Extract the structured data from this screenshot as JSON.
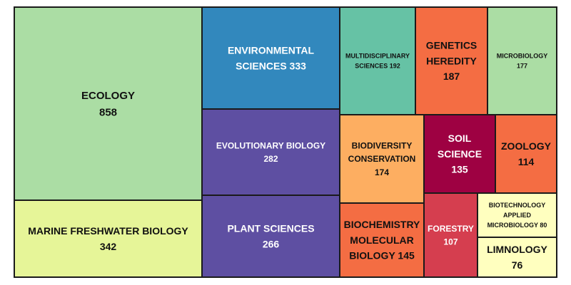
{
  "chart_data": {
    "type": "treemap",
    "title": "",
    "items": [
      {
        "name": "ECOLOGY",
        "value": 858,
        "color": "#abdda4"
      },
      {
        "name": "MARINE FRESHWATER BIOLOGY",
        "value": 342,
        "color": "#e6f598"
      },
      {
        "name": "ENVIRONMENTAL SCIENCES",
        "value": 333,
        "color": "#3288bd"
      },
      {
        "name": "EVOLUTIONARY BIOLOGY",
        "value": 282,
        "color": "#5e4fa2"
      },
      {
        "name": "PLANT SCIENCES",
        "value": 266,
        "color": "#5e4fa2"
      },
      {
        "name": "MULTIDISCIPLINARY SCIENCES",
        "value": 192,
        "color": "#66c2a5"
      },
      {
        "name": "GENETICS HEREDITY",
        "value": 187,
        "color": "#f46d43"
      },
      {
        "name": "MICROBIOLOGY",
        "value": 177,
        "color": "#abdda4"
      },
      {
        "name": "BIODIVERSITY CONSERVATION",
        "value": 174,
        "color": "#fdae61"
      },
      {
        "name": "SOIL SCIENCE",
        "value": 135,
        "color": "#9e0142"
      },
      {
        "name": "ZOOLOGY",
        "value": 114,
        "color": "#f46d43"
      },
      {
        "name": "BIOCHEMISTRY MOLECULAR BIOLOGY",
        "value": 145,
        "color": "#f46d43"
      },
      {
        "name": "FORESTRY",
        "value": 107,
        "color": "#d53e4f"
      },
      {
        "name": "BIOTECHNOLOGY APPLIED MICROBIOLOGY",
        "value": 80,
        "color": "#ffffbf"
      },
      {
        "name": "LIMNOLOGY",
        "value": 76,
        "color": "#ffffbf"
      }
    ]
  }
}
